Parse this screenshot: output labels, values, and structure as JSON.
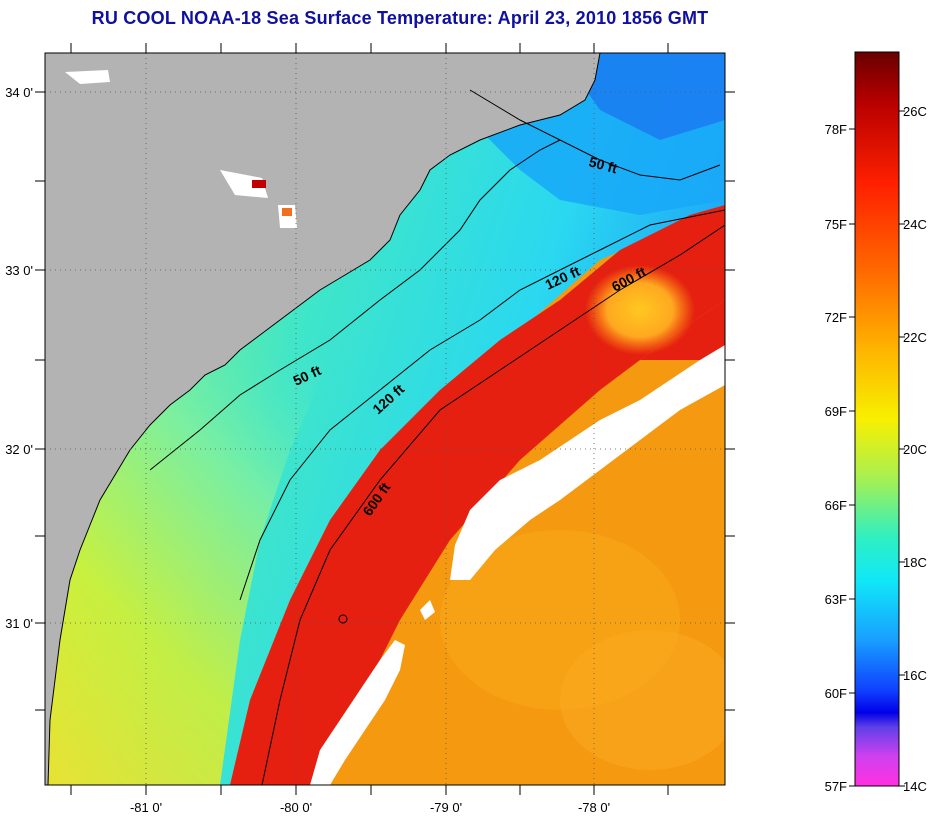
{
  "title": "RU COOL  NOAA-18  Sea Surface Temperature:  April 23, 2010 1856 GMT",
  "map": {
    "lat_labels": [
      {
        "text": "34 0'",
        "lat": 34
      },
      {
        "text": "33 0'",
        "lat": 33
      },
      {
        "text": "32 0'",
        "lat": 32
      },
      {
        "text": "31 0'",
        "lat": 31
      }
    ],
    "lon_labels": [
      {
        "text": "-81 0'",
        "lon": -81
      },
      {
        "text": "-80 0'",
        "lon": -80
      },
      {
        "text": "-79 0'",
        "lon": -79
      },
      {
        "text": "-78 0'",
        "lon": -78
      }
    ],
    "contour_labels": [
      {
        "text": "50 ft",
        "isobath": "50 ft"
      },
      {
        "text": "50 ft",
        "isobath": "50 ft"
      },
      {
        "text": "120 ft",
        "isobath": "120 ft"
      },
      {
        "text": "120 ft",
        "isobath": "120 ft"
      },
      {
        "text": "600 ft",
        "isobath": "600 ft"
      },
      {
        "text": "600 ft",
        "isobath": "600 ft"
      }
    ],
    "colors": {
      "land": "#b3b3b3",
      "cloud": "#ffffff",
      "gulf_stream": "#e0190a",
      "offshore": "#f59a10"
    }
  },
  "colorbar": {
    "fahrenheit_labels": [
      "78F",
      "75F",
      "72F",
      "69F",
      "66F",
      "63F",
      "60F",
      "57F"
    ],
    "celsius_labels": [
      "26C",
      "24C",
      "22C",
      "20C",
      "18C",
      "16C",
      "14C"
    ],
    "range_c": [
      14,
      27
    ]
  }
}
